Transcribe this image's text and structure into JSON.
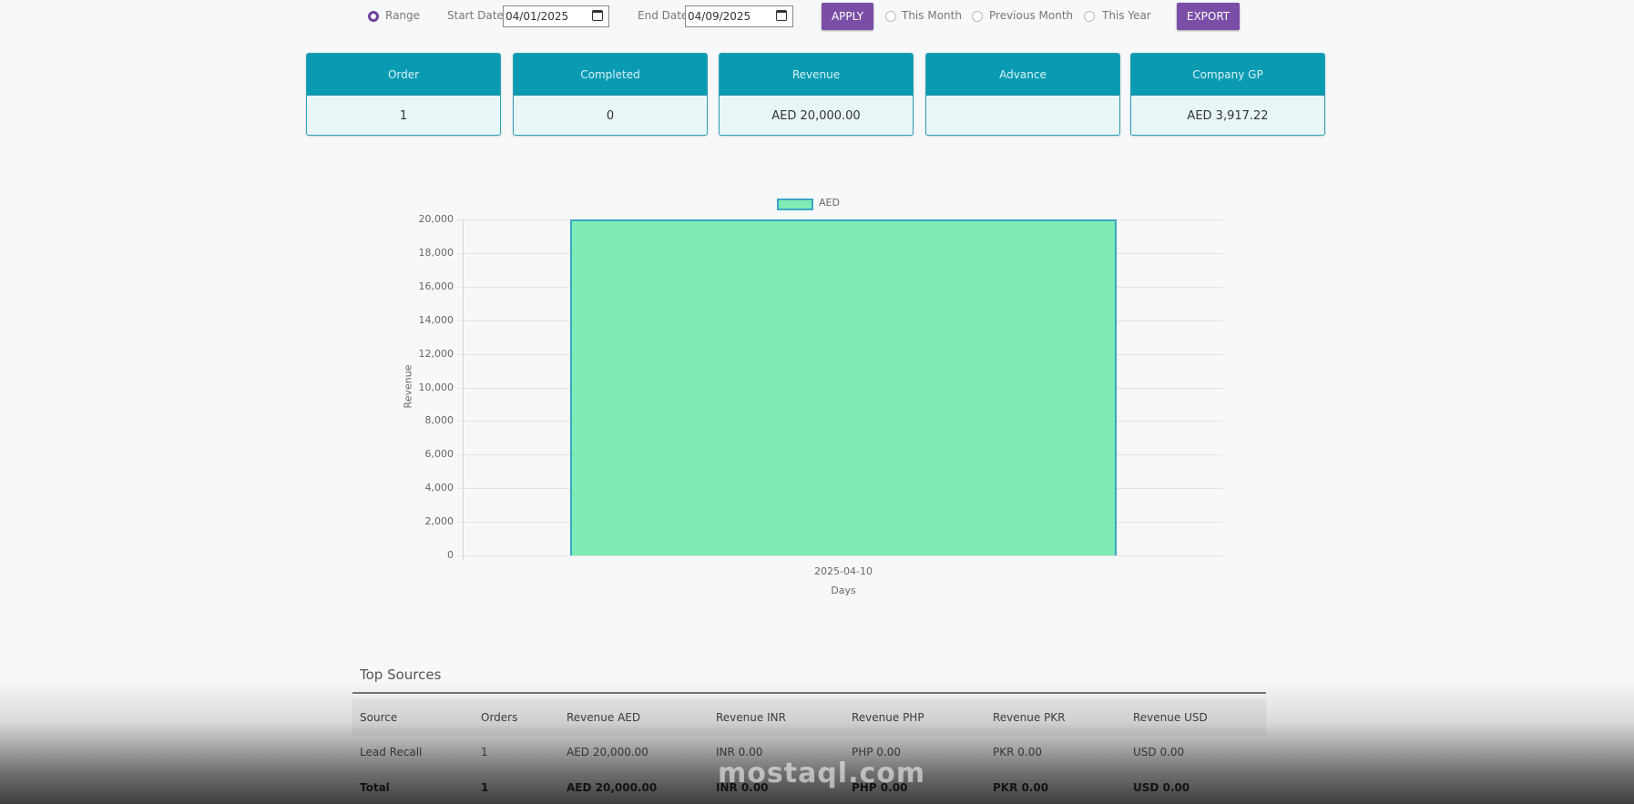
{
  "filters": {
    "range_label": "Range",
    "range_selected": true,
    "start_date_label": "Start Date",
    "start_date_value": "04/01/2025",
    "end_date_label": "End Date",
    "end_date_value": "04/09/2025",
    "apply_label": "APPLY",
    "this_month_label": "This Month",
    "previous_month_label": "Previous Month",
    "this_year_label": "This Year",
    "export_label": "EXPORT"
  },
  "kpis": [
    {
      "label": "Order",
      "value": "1"
    },
    {
      "label": "Completed",
      "value": "0"
    },
    {
      "label": "Revenue",
      "value": "AED 20,000.00"
    },
    {
      "label": "Advance",
      "value": ""
    },
    {
      "label": "Company GP",
      "value": "AED 3,917.22"
    }
  ],
  "colors": {
    "accent_purple": "#7a4ea6",
    "card_header": "#0a9bb3",
    "card_body": "#e9f6f8",
    "bar_fill": "#7eecb4",
    "bar_border": "#3ba6c4"
  },
  "chart_data": {
    "type": "bar",
    "title": "",
    "legend": [
      "AED"
    ],
    "legend_position": "top",
    "categories": [
      "2025-04-10"
    ],
    "series": [
      {
        "name": "AED",
        "values": [
          20000
        ]
      }
    ],
    "xlabel": "Days",
    "ylabel": "Revenue",
    "ylim": [
      0,
      20000
    ],
    "yticks": [
      "0",
      "2,000",
      "4,000",
      "6,000",
      "8,000",
      "10,000",
      "12,000",
      "14,000",
      "16,000",
      "18,000",
      "20,000"
    ],
    "grid": true
  },
  "top_sources": {
    "title": "Top Sources",
    "columns": [
      "Source",
      "Orders",
      "Revenue AED",
      "Revenue INR",
      "Revenue PHP",
      "Revenue PKR",
      "Revenue USD"
    ],
    "rows": [
      [
        "Lead Recall",
        "1",
        "AED 20,000.00",
        "INR 0.00",
        "PHP 0.00",
        "PKR 0.00",
        "USD 0.00"
      ],
      [
        "Total",
        "1",
        "AED 20,000.00",
        "INR 0.00",
        "PHP 0.00",
        "PKR 0.00",
        "USD 0.00"
      ]
    ]
  },
  "watermark": "mostaql.com"
}
